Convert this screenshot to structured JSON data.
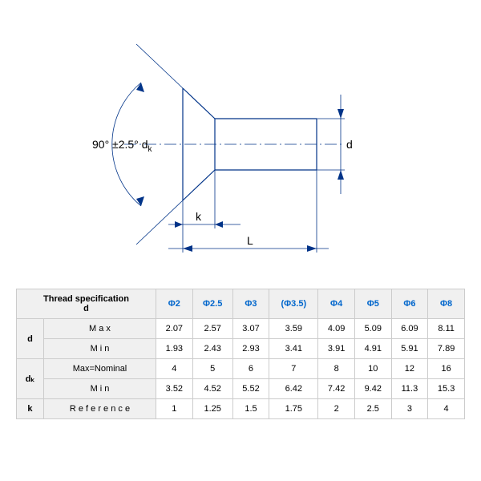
{
  "diagram": {
    "angle_label": "90° ±2.5° d",
    "angle_sub": "k",
    "d_label": "d",
    "k_label": "k",
    "L_label": "L",
    "stroke": "#003388",
    "stroke_width": 1.2,
    "text_color": "#000000"
  },
  "table": {
    "header_thread": "Thread specification\nd",
    "thread_cols": [
      "Φ2",
      "Φ2.5",
      "Φ3",
      "(Φ3.5)",
      "Φ4",
      "Φ5",
      "Φ6",
      "Φ8"
    ],
    "groups": [
      {
        "label": "d",
        "rows": [
          {
            "label": "M a x",
            "vals": [
              "2.07",
              "2.57",
              "3.07",
              "3.59",
              "4.09",
              "5.09",
              "6.09",
              "8.11"
            ]
          },
          {
            "label": "M i n",
            "vals": [
              "1.93",
              "2.43",
              "2.93",
              "3.41",
              "3.91",
              "4.91",
              "5.91",
              "7.89"
            ]
          }
        ]
      },
      {
        "label": "dₖ",
        "rows": [
          {
            "label": "Max=Nominal",
            "vals": [
              "4",
              "5",
              "6",
              "7",
              "8",
              "10",
              "12",
              "16"
            ]
          },
          {
            "label": "M i n",
            "vals": [
              "3.52",
              "4.52",
              "5.52",
              "6.42",
              "7.42",
              "9.42",
              "11.3",
              "15.3"
            ]
          }
        ]
      },
      {
        "label": "k",
        "rows": [
          {
            "label": "R e f e r e n c e",
            "vals": [
              "1",
              "1.25",
              "1.5",
              "1.75",
              "2",
              "2.5",
              "3",
              "4"
            ]
          }
        ]
      }
    ]
  }
}
